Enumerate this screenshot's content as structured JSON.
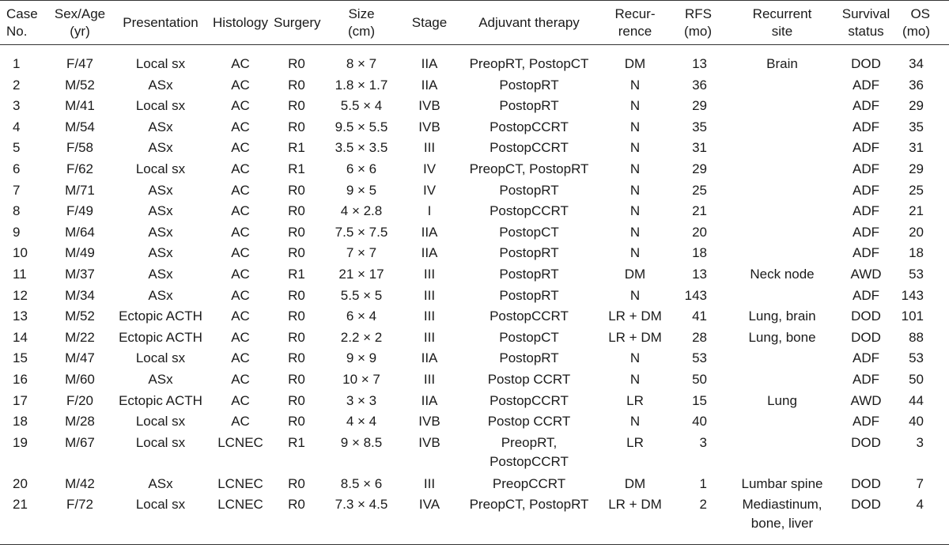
{
  "table": {
    "headers": [
      [
        "Case",
        "No."
      ],
      [
        "Sex/Age",
        "(yr)"
      ],
      [
        "Presentation"
      ],
      [
        "Histology"
      ],
      [
        "Surgery"
      ],
      [
        "Size",
        "(cm)"
      ],
      [
        "Stage"
      ],
      [
        "Adjuvant therapy"
      ],
      [
        "Recur-",
        "rence"
      ],
      [
        "RFS",
        "(mo)"
      ],
      [
        "Recurrent",
        "site"
      ],
      [
        "Survival",
        "status"
      ],
      [
        "OS",
        "(mo)"
      ]
    ],
    "rows": [
      [
        "1",
        "F/47",
        "Local sx",
        "AC",
        "R0",
        "8 × 7",
        "IIA",
        "PreopRT, PostopCT",
        "DM",
        "13",
        "Brain",
        "DOD",
        "34"
      ],
      [
        "2",
        "M/52",
        "ASx",
        "AC",
        "R0",
        "1.8 × 1.7",
        "IIA",
        "PostopRT",
        "N",
        "36",
        "",
        "ADF",
        "36"
      ],
      [
        "3",
        "M/41",
        "Local sx",
        "AC",
        "R0",
        "5.5 × 4",
        "IVB",
        "PostopRT",
        "N",
        "29",
        "",
        "ADF",
        "29"
      ],
      [
        "4",
        "M/54",
        "ASx",
        "AC",
        "R0",
        "9.5 × 5.5",
        "IVB",
        "PostopCCRT",
        "N",
        "35",
        "",
        "ADF",
        "35"
      ],
      [
        "5",
        "F/58",
        "ASx",
        "AC",
        "R1",
        "3.5 × 3.5",
        "III",
        "PostopCCRT",
        "N",
        "31",
        "",
        "ADF",
        "31"
      ],
      [
        "6",
        "F/62",
        "Local sx",
        "AC",
        "R1",
        "6 × 6",
        "IV",
        "PreopCT, PostopRT",
        "N",
        "29",
        "",
        "ADF",
        "29"
      ],
      [
        "7",
        "M/71",
        "ASx",
        "AC",
        "R0",
        "9 × 5",
        "IV",
        "PostopRT",
        "N",
        "25",
        "",
        "ADF",
        "25"
      ],
      [
        "8",
        "F/49",
        "ASx",
        "AC",
        "R0",
        "4 × 2.8",
        "I",
        "PostopCCRT",
        "N",
        "21",
        "",
        "ADF",
        "21"
      ],
      [
        "9",
        "M/64",
        "ASx",
        "AC",
        "R0",
        "7.5 × 7.5",
        "IIA",
        "PostopCT",
        "N",
        "20",
        "",
        "ADF",
        "20"
      ],
      [
        "10",
        "M/49",
        "ASx",
        "AC",
        "R0",
        "7 × 7",
        "IIA",
        "PostopRT",
        "N",
        "18",
        "",
        "ADF",
        "18"
      ],
      [
        "11",
        "M/37",
        "ASx",
        "AC",
        "R1",
        "21 × 17",
        "III",
        "PostopRT",
        "DM",
        "13",
        "Neck node",
        "AWD",
        "53"
      ],
      [
        "12",
        "M/34",
        "ASx",
        "AC",
        "R0",
        "5.5 × 5",
        "III",
        "PostopRT",
        "N",
        "143",
        "",
        "ADF",
        "143"
      ],
      [
        "13",
        "M/52",
        "Ectopic ACTH",
        "AC",
        "R0",
        "6 × 4",
        "III",
        "PostopCCRT",
        "LR + DM",
        "41",
        "Lung, brain",
        "DOD",
        "101"
      ],
      [
        "14",
        "M/22",
        "Ectopic ACTH",
        "AC",
        "R0",
        "2.2 × 2",
        "III",
        "PostopCT",
        "LR + DM",
        "28",
        "Lung, bone",
        "DOD",
        "88"
      ],
      [
        "15",
        "M/47",
        "Local sx",
        "AC",
        "R0",
        "9 × 9",
        "IIA",
        "PostopRT",
        "N",
        "53",
        "",
        "ADF",
        "53"
      ],
      [
        "16",
        "M/60",
        "ASx",
        "AC",
        "R0",
        "10 × 7",
        "III",
        "Postop CCRT",
        "N",
        "50",
        "",
        "ADF",
        "50"
      ],
      [
        "17",
        "F/20",
        "Ectopic ACTH",
        "AC",
        "R0",
        "3 × 3",
        "IIA",
        "PostopCCRT",
        "LR",
        "15",
        "Lung",
        "AWD",
        "44"
      ],
      [
        "18",
        "M/28",
        "Local sx",
        "AC",
        "R0",
        "4 × 4",
        "IVB",
        "Postop CCRT",
        "N",
        "40",
        "",
        "ADF",
        "40"
      ],
      [
        "19",
        "M/67",
        "Local sx",
        "LCNEC",
        "R1",
        "9 × 8.5",
        "IVB",
        [
          "PreopRT,",
          "PostopCCRT"
        ],
        "LR",
        "3",
        "",
        "DOD",
        "3"
      ],
      [
        "20",
        "M/42",
        "ASx",
        "LCNEC",
        "R0",
        "8.5 × 6",
        "III",
        "PreopCCRT",
        "DM",
        "1",
        "Lumbar spine",
        "DOD",
        "7"
      ],
      [
        "21",
        "F/72",
        "Local sx",
        "LCNEC",
        "R0",
        "7.3 × 4.5",
        "IVA",
        "PreopCT, PostopRT",
        "LR + DM",
        "2",
        [
          "Mediastinum,",
          "bone, liver"
        ],
        "DOD",
        "4"
      ]
    ]
  }
}
